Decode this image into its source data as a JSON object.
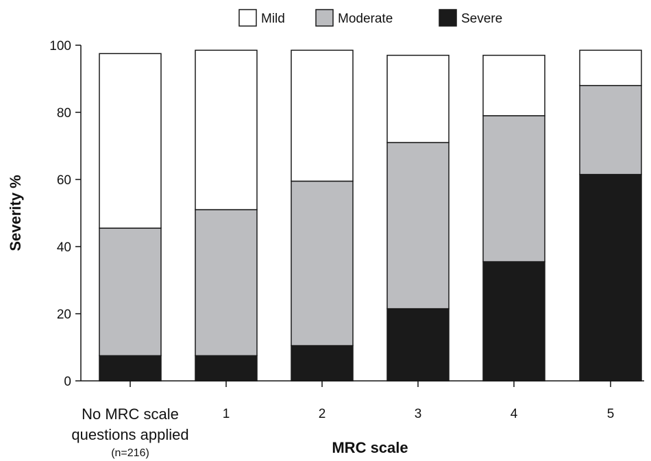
{
  "chart_data": {
    "type": "bar",
    "stacked": true,
    "categories": [
      "No MRC scale questions applied",
      "1",
      "2",
      "3",
      "4",
      "5"
    ],
    "category_sublabel": "(n=216)",
    "series": [
      {
        "name": "Severe",
        "color": "#1a1a1a",
        "values": [
          7.5,
          7.5,
          10.5,
          21.5,
          35.5,
          61.5
        ]
      },
      {
        "name": "Moderate",
        "color": "#bcbdc0",
        "values": [
          38,
          43.5,
          49,
          49.5,
          43.5,
          26.5
        ]
      },
      {
        "name": "Mild",
        "color": "#ffffff",
        "values": [
          52,
          47.5,
          39,
          26,
          18,
          10.5
        ]
      }
    ],
    "legend_order": [
      "Mild",
      "Moderate",
      "Severe"
    ],
    "legend_position": "top",
    "xlabel": "MRC scale",
    "ylabel": "Severity %",
    "ylim": [
      0,
      100
    ],
    "yticks": [
      0,
      20,
      40,
      60,
      80,
      100
    ],
    "grid": false
  }
}
